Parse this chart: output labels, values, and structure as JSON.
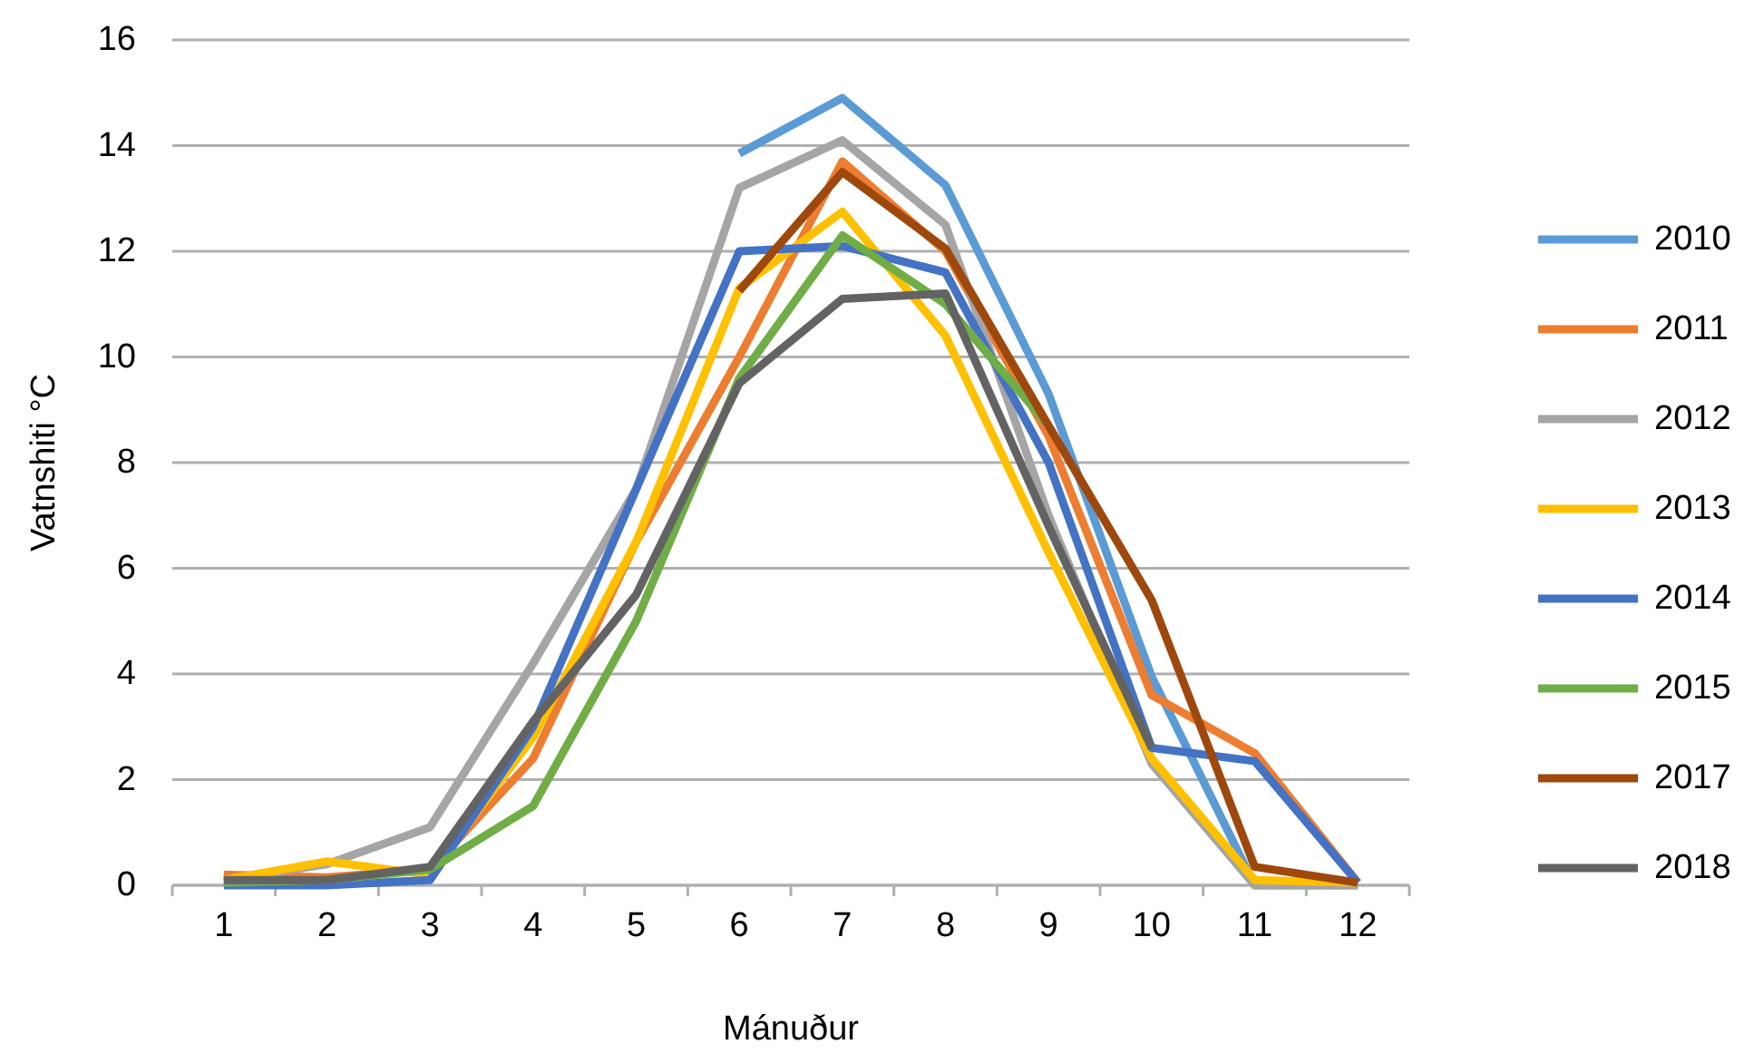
{
  "chart_data": {
    "type": "line",
    "xlabel": "Mánuður",
    "ylabel": "Vatnshiti °C",
    "categories": [
      "1",
      "2",
      "3",
      "4",
      "5",
      "6",
      "7",
      "8",
      "9",
      "10",
      "11",
      "12"
    ],
    "ylim": [
      0,
      16
    ],
    "yticks": [
      0,
      2,
      4,
      6,
      8,
      10,
      12,
      14,
      16
    ],
    "grid": "y",
    "legend": "right",
    "marker": "none",
    "line_style": "solid",
    "series": [
      {
        "name": "2010",
        "color": "#5b9bd5",
        "values": [
          null,
          null,
          null,
          null,
          null,
          13.85,
          14.9,
          13.25,
          9.3,
          3.95,
          0,
          0
        ]
      },
      {
        "name": "2011",
        "color": "#ed7d31",
        "values": [
          0.2,
          0.15,
          0.3,
          2.4,
          6.5,
          10,
          13.7,
          12,
          8.5,
          3.6,
          2.5,
          0.05
        ]
      },
      {
        "name": "2012",
        "color": "#a5a5a5",
        "values": [
          0.1,
          0.4,
          1.1,
          4.2,
          7.5,
          13.2,
          14.1,
          12.5,
          7,
          2.3,
          0,
          0
        ]
      },
      {
        "name": "2013",
        "color": "#ffc000",
        "values": [
          0.1,
          0.45,
          0.2,
          2.8,
          6.5,
          11.3,
          12.75,
          10.4,
          6.3,
          2.4,
          0.1,
          0.05
        ]
      },
      {
        "name": "2014",
        "color": "#4472c4",
        "values": [
          0,
          0,
          0.1,
          3,
          7.5,
          12,
          12.1,
          11.6,
          8,
          2.6,
          2.35,
          0.05
        ]
      },
      {
        "name": "2015",
        "color": "#70ad47",
        "values": [
          0.05,
          0.1,
          0.3,
          1.5,
          5,
          9.6,
          12.3,
          11,
          8.7,
          null,
          null,
          null
        ]
      },
      {
        "name": "2017",
        "color": "#9e480e",
        "values": [
          null,
          null,
          null,
          null,
          null,
          11.25,
          13.5,
          12.05,
          8.7,
          5.4,
          0.35,
          0.05
        ]
      },
      {
        "name": "2018",
        "color": "#636363",
        "values": [
          0.1,
          0.1,
          0.35,
          3.1,
          5.5,
          9.5,
          11.1,
          11.2,
          6.8,
          2.6,
          null,
          null
        ]
      }
    ]
  }
}
